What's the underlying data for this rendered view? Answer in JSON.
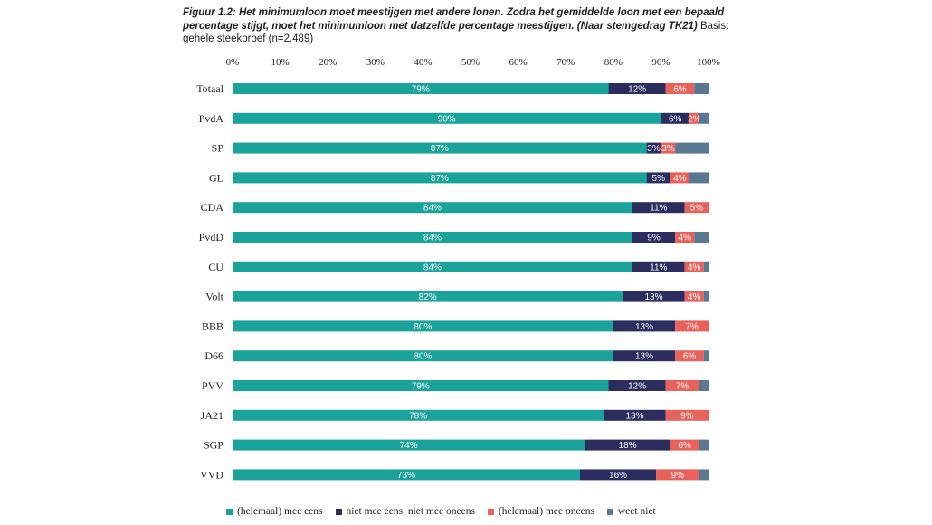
{
  "title": {
    "main": "Figuur 1.2: Het minimumloon moet meestijgen met andere lonen. Zodra het gemiddelde loon met een bepaald percentage stijgt, moet het minimumloon met datzelfde percentage meestijgen. (Naar stemgedrag TK21)",
    "basis": "Basis: gehele steekproef (n=2.489)"
  },
  "colors": {
    "eens": "#1aa39a",
    "niet_eens_niet_oneens": "#2b2d5e",
    "oneens": "#e8615b",
    "weet_niet": "#5b7892"
  },
  "chart_data": {
    "type": "bar",
    "orientation": "horizontal",
    "stacked": true,
    "xlim": [
      0,
      100
    ],
    "x_ticks": [
      "0%",
      "10%",
      "20%",
      "30%",
      "40%",
      "50%",
      "60%",
      "70%",
      "80%",
      "90%",
      "100%"
    ],
    "categories": [
      "Totaal",
      "PvdA",
      "SP",
      "GL",
      "CDA",
      "PvdD",
      "CU",
      "Volt",
      "BBB",
      "D66",
      "PVV",
      "JA21",
      "SGP",
      "VVD"
    ],
    "series": [
      {
        "name": "(helemaal) mee eens",
        "key": "eens",
        "values": [
          79,
          90,
          87,
          87,
          84,
          84,
          84,
          82,
          80,
          80,
          79,
          78,
          74,
          73
        ],
        "labels": [
          "79%",
          "90%",
          "87%",
          "87%",
          "84%",
          "84%",
          "84%",
          "82%",
          "80%",
          "80%",
          "79%",
          "78%",
          "74%",
          "73%"
        ]
      },
      {
        "name": "niet mee eens, niet mee oneens",
        "key": "niet_eens_niet_oneens",
        "values": [
          12,
          6,
          3,
          5,
          11,
          9,
          11,
          13,
          13,
          13,
          12,
          13,
          18,
          16
        ],
        "labels": [
          "12%",
          "6%",
          "3%",
          "5%",
          "11%",
          "9%",
          "11%",
          "13%",
          "13%",
          "13%",
          "12%",
          "13%",
          "18%",
          "16%"
        ]
      },
      {
        "name": "(helemaal) mee oneens",
        "key": "oneens",
        "values": [
          6,
          2,
          3,
          4,
          5,
          4,
          4,
          4,
          7,
          6,
          7,
          9,
          6,
          9
        ],
        "labels": [
          "6%",
          "2%",
          "3%",
          "4%",
          "5%",
          "4%",
          "4%",
          "4%",
          "7%",
          "6%",
          "7%",
          "9%",
          "6%",
          "9%"
        ]
      },
      {
        "name": "weet niet",
        "key": "weet_niet",
        "values": [
          3,
          2,
          7,
          4,
          0,
          3,
          1,
          1,
          0,
          1,
          2,
          0,
          2,
          2
        ],
        "labels": [
          "",
          "",
          "",
          "",
          "",
          "",
          "",
          "",
          "",
          "",
          "",
          "",
          "",
          ""
        ]
      }
    ],
    "legend_position": "bottom"
  }
}
